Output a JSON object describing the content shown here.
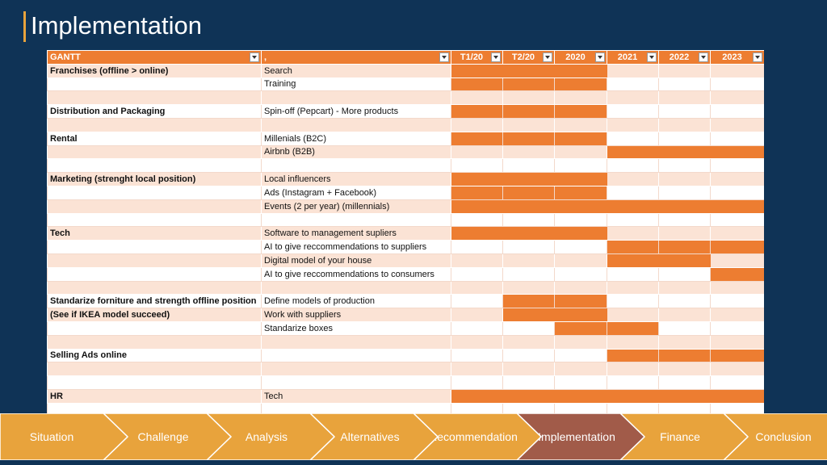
{
  "title": "Implementation",
  "colors": {
    "bar": "#ed7d31",
    "rowTint": "#fbe3d5",
    "nav": "#e8a33c",
    "navActive": "#a15b49",
    "background": "#0f3356"
  },
  "gantt": {
    "columns": [
      "GANTT",
      ",",
      "T1/20",
      "T2/20",
      "2020",
      "2021",
      "2022",
      "2023"
    ],
    "rows": [
      {
        "category": "Franchises (offline > online)",
        "task": "Search",
        "bars": [
          1,
          1,
          1,
          0,
          0,
          0
        ]
      },
      {
        "category": "",
        "task": "Training",
        "bars": [
          1,
          1,
          1,
          0,
          0,
          0
        ]
      },
      {
        "category": "",
        "task": "",
        "bars": [
          0,
          0,
          0,
          0,
          0,
          0
        ]
      },
      {
        "category": "Distribution and Packaging",
        "task": "Spin-off (Pepcart) - More products",
        "bars": [
          1,
          1,
          1,
          0,
          0,
          0
        ]
      },
      {
        "category": "",
        "task": "",
        "bars": [
          0,
          0,
          0,
          0,
          0,
          0
        ]
      },
      {
        "category": "Rental",
        "task": "Millenials (B2C)",
        "bars": [
          1,
          1,
          1,
          0,
          0,
          0
        ]
      },
      {
        "category": "",
        "task": "Airbnb (B2B)",
        "bars": [
          0,
          0,
          0,
          1,
          1,
          1
        ]
      },
      {
        "category": "",
        "task": "",
        "bars": [
          0,
          0,
          0,
          0,
          0,
          0
        ]
      },
      {
        "category": "Marketing (strenght local position)",
        "task": "Local influencers",
        "bars": [
          1,
          1,
          1,
          0,
          0,
          0
        ]
      },
      {
        "category": "",
        "task": "Ads (Instagram + Facebook)",
        "bars": [
          1,
          1,
          1,
          0,
          0,
          0
        ]
      },
      {
        "category": "",
        "task": "Events (2 per year) (millennials)",
        "bars": [
          1,
          1,
          1,
          1,
          1,
          1
        ]
      },
      {
        "category": "",
        "task": "",
        "bars": [
          0,
          0,
          0,
          0,
          0,
          0
        ]
      },
      {
        "category": "Tech",
        "task": "Software to management supliers",
        "bars": [
          1,
          1,
          1,
          0,
          0,
          0
        ]
      },
      {
        "category": "",
        "task": "AI to give reccommendations to suppliers",
        "bars": [
          0,
          0,
          0,
          1,
          1,
          1
        ]
      },
      {
        "category": "",
        "task": "Digital model of your house",
        "bars": [
          0,
          0,
          0,
          1,
          1,
          0
        ]
      },
      {
        "category": "",
        "task": "AI to give reccommendations to consumers",
        "bars": [
          0,
          0,
          0,
          0,
          0,
          1
        ]
      },
      {
        "category": "",
        "task": "",
        "bars": [
          0,
          0,
          0,
          0,
          0,
          0
        ]
      },
      {
        "category": "Standarize forniture and strength offline position",
        "task": "Define models of production",
        "bars": [
          0,
          1,
          1,
          0,
          0,
          0
        ]
      },
      {
        "category": "(See if IKEA model succeed)",
        "task": "Work with suppliers",
        "bars": [
          0,
          1,
          1,
          0,
          0,
          0
        ]
      },
      {
        "category": "",
        "task": "Standarize boxes",
        "bars": [
          0,
          0,
          1,
          1,
          0,
          0
        ]
      },
      {
        "category": "",
        "task": "",
        "bars": [
          0,
          0,
          0,
          0,
          0,
          0
        ]
      },
      {
        "category": "Selling Ads online",
        "task": "",
        "bars": [
          0,
          0,
          0,
          1,
          1,
          1
        ]
      },
      {
        "category": "",
        "task": "",
        "bars": [
          0,
          0,
          0,
          0,
          0,
          0
        ]
      },
      {
        "category": "",
        "task": "",
        "bars": [
          0,
          0,
          0,
          0,
          0,
          0
        ]
      },
      {
        "category": "HR",
        "task": "Tech",
        "bars": [
          1,
          1,
          1,
          1,
          1,
          1
        ]
      },
      {
        "category": "",
        "task": "",
        "bars": [
          0,
          0,
          0,
          0,
          0,
          0
        ]
      }
    ]
  },
  "nav": {
    "active": "Implementation",
    "steps": [
      "Situation",
      "Challenge",
      "Analysis",
      "Alternatives",
      "Recommendation",
      "Implementation",
      "Finance",
      "Conclusion"
    ]
  }
}
